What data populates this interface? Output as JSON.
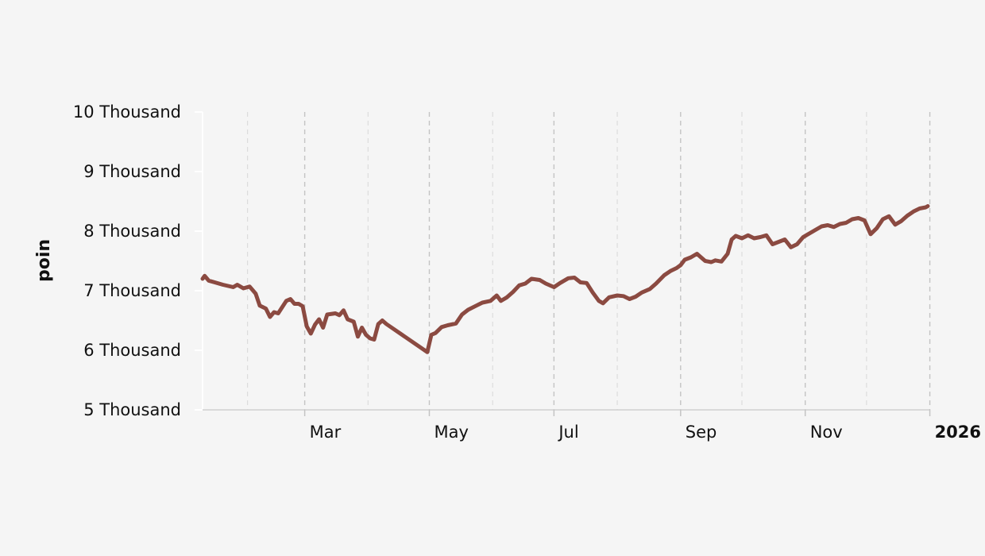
{
  "chart_data": {
    "type": "line",
    "title": "",
    "xlabel": "",
    "ylabel": "poin",
    "x_range": [
      "2025-01-10",
      "2025-12-31"
    ],
    "ylim": [
      5000,
      10000
    ],
    "y_ticks": [
      {
        "value": 5000,
        "label": "5 Thousand"
      },
      {
        "value": 6000,
        "label": "6 Thousand"
      },
      {
        "value": 7000,
        "label": "7 Thousand"
      },
      {
        "value": 8000,
        "label": "8 Thousand"
      },
      {
        "value": 9000,
        "label": "9 Thousand"
      },
      {
        "value": 10000,
        "label": "10 Thousand"
      }
    ],
    "x_ticks": [
      {
        "date": "2025-03-01",
        "label": "Mar",
        "bold": false
      },
      {
        "date": "2025-05-01",
        "label": "May",
        "bold": false
      },
      {
        "date": "2025-07-01",
        "label": "Jul",
        "bold": false
      },
      {
        "date": "2025-09-01",
        "label": "Sep",
        "bold": false
      },
      {
        "date": "2025-11-01",
        "label": "Nov",
        "bold": false
      },
      {
        "date": "2026-01-01",
        "label": "2026",
        "bold": true
      }
    ],
    "minor_grid_dates": [
      "2025-02-01",
      "2025-04-01",
      "2025-06-01",
      "2025-08-01",
      "2025-10-01",
      "2025-12-01"
    ],
    "grid": "vertical dashed",
    "line_color": "#8b4a41",
    "series": [
      {
        "name": "",
        "points": [
          [
            "2025-01-10",
            7200
          ],
          [
            "2025-01-11",
            7250
          ],
          [
            "2025-01-13",
            7170
          ],
          [
            "2025-01-16",
            7140
          ],
          [
            "2025-01-20",
            7100
          ],
          [
            "2025-01-25",
            7060
          ],
          [
            "2025-01-27",
            7100
          ],
          [
            "2025-01-30",
            7040
          ],
          [
            "2025-02-02",
            7070
          ],
          [
            "2025-02-05",
            6950
          ],
          [
            "2025-02-07",
            6750
          ],
          [
            "2025-02-10",
            6700
          ],
          [
            "2025-02-12",
            6560
          ],
          [
            "2025-02-14",
            6640
          ],
          [
            "2025-02-16",
            6620
          ],
          [
            "2025-02-20",
            6830
          ],
          [
            "2025-02-22",
            6860
          ],
          [
            "2025-02-24",
            6780
          ],
          [
            "2025-02-26",
            6780
          ],
          [
            "2025-02-28",
            6740
          ],
          [
            "2025-03-02",
            6400
          ],
          [
            "2025-03-04",
            6280
          ],
          [
            "2025-03-06",
            6430
          ],
          [
            "2025-03-08",
            6520
          ],
          [
            "2025-03-10",
            6380
          ],
          [
            "2025-03-12",
            6600
          ],
          [
            "2025-03-16",
            6620
          ],
          [
            "2025-03-18",
            6590
          ],
          [
            "2025-03-20",
            6670
          ],
          [
            "2025-03-22",
            6520
          ],
          [
            "2025-03-25",
            6480
          ],
          [
            "2025-03-27",
            6230
          ],
          [
            "2025-03-29",
            6380
          ],
          [
            "2025-03-31",
            6260
          ],
          [
            "2025-04-02",
            6200
          ],
          [
            "2025-04-04",
            6180
          ],
          [
            "2025-04-06",
            6440
          ],
          [
            "2025-04-08",
            6500
          ],
          [
            "2025-04-10",
            6440
          ],
          [
            "2025-04-30",
            5970
          ],
          [
            "2025-05-02",
            6260
          ],
          [
            "2025-05-04",
            6290
          ],
          [
            "2025-05-07",
            6390
          ],
          [
            "2025-05-10",
            6420
          ],
          [
            "2025-05-14",
            6450
          ],
          [
            "2025-05-17",
            6600
          ],
          [
            "2025-05-20",
            6680
          ],
          [
            "2025-05-24",
            6750
          ],
          [
            "2025-05-27",
            6800
          ],
          [
            "2025-05-31",
            6830
          ],
          [
            "2025-06-03",
            6920
          ],
          [
            "2025-06-05",
            6830
          ],
          [
            "2025-06-08",
            6890
          ],
          [
            "2025-06-11",
            6980
          ],
          [
            "2025-06-14",
            7090
          ],
          [
            "2025-06-17",
            7120
          ],
          [
            "2025-06-20",
            7200
          ],
          [
            "2025-06-24",
            7180
          ],
          [
            "2025-06-27",
            7120
          ],
          [
            "2025-07-01",
            7060
          ],
          [
            "2025-07-04",
            7130
          ],
          [
            "2025-07-08",
            7210
          ],
          [
            "2025-07-11",
            7220
          ],
          [
            "2025-07-14",
            7140
          ],
          [
            "2025-07-17",
            7130
          ],
          [
            "2025-07-20",
            6970
          ],
          [
            "2025-07-23",
            6830
          ],
          [
            "2025-07-25",
            6790
          ],
          [
            "2025-07-28",
            6890
          ],
          [
            "2025-08-01",
            6920
          ],
          [
            "2025-08-04",
            6910
          ],
          [
            "2025-08-07",
            6860
          ],
          [
            "2025-08-10",
            6900
          ],
          [
            "2025-08-13",
            6970
          ],
          [
            "2025-08-17",
            7030
          ],
          [
            "2025-08-20",
            7120
          ],
          [
            "2025-08-24",
            7260
          ],
          [
            "2025-08-27",
            7330
          ],
          [
            "2025-08-30",
            7380
          ],
          [
            "2025-09-01",
            7430
          ],
          [
            "2025-09-03",
            7520
          ],
          [
            "2025-09-06",
            7560
          ],
          [
            "2025-09-09",
            7620
          ],
          [
            "2025-09-11",
            7560
          ],
          [
            "2025-09-13",
            7500
          ],
          [
            "2025-09-16",
            7480
          ],
          [
            "2025-09-18",
            7510
          ],
          [
            "2025-09-21",
            7490
          ],
          [
            "2025-09-24",
            7620
          ],
          [
            "2025-09-26",
            7860
          ],
          [
            "2025-09-28",
            7920
          ],
          [
            "2025-10-01",
            7880
          ],
          [
            "2025-10-04",
            7930
          ],
          [
            "2025-10-07",
            7880
          ],
          [
            "2025-10-10",
            7900
          ],
          [
            "2025-10-13",
            7930
          ],
          [
            "2025-10-16",
            7780
          ],
          [
            "2025-10-19",
            7820
          ],
          [
            "2025-10-22",
            7860
          ],
          [
            "2025-10-25",
            7730
          ],
          [
            "2025-10-28",
            7780
          ],
          [
            "2025-10-31",
            7900
          ],
          [
            "2025-11-03",
            7960
          ],
          [
            "2025-11-06",
            8020
          ],
          [
            "2025-11-09",
            8080
          ],
          [
            "2025-11-12",
            8100
          ],
          [
            "2025-11-15",
            8070
          ],
          [
            "2025-11-18",
            8120
          ],
          [
            "2025-11-21",
            8140
          ],
          [
            "2025-11-24",
            8200
          ],
          [
            "2025-11-27",
            8220
          ],
          [
            "2025-11-30",
            8180
          ],
          [
            "2025-12-03",
            7950
          ],
          [
            "2025-12-06",
            8050
          ],
          [
            "2025-12-09",
            8200
          ],
          [
            "2025-12-12",
            8250
          ],
          [
            "2025-12-15",
            8110
          ],
          [
            "2025-12-18",
            8170
          ],
          [
            "2025-12-21",
            8260
          ],
          [
            "2025-12-24",
            8330
          ],
          [
            "2025-12-27",
            8380
          ],
          [
            "2025-12-30",
            8400
          ],
          [
            "2025-12-31",
            8420
          ]
        ]
      }
    ]
  }
}
